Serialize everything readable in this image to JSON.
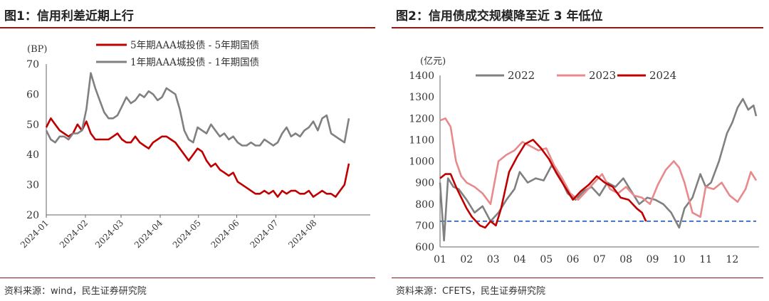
{
  "left": {
    "title": "图1：信用利差近期上行",
    "source": "资料来源：wind，民生证券研究院"
  },
  "right": {
    "title": "图2：信用债成交规模降至近 3 年低位",
    "source": "资料来源：CFETS，民生证券研究院"
  },
  "chart_data": [
    {
      "type": "line",
      "title": "图1：信用利差近期上行",
      "ylabel": "(BP)",
      "xlabel": "",
      "ylim": [
        20,
        70
      ],
      "yticks": [
        20,
        30,
        40,
        50,
        60,
        70
      ],
      "xlim": [
        0,
        34
      ],
      "xtick_positions": [
        0,
        4.4,
        8.4,
        12.8,
        17.1,
        21.4,
        25.8,
        30.1
      ],
      "xtick_labels": [
        "2024-01",
        "2024-02",
        "2024-03",
        "2024-04",
        "2024-05",
        "2024-06",
        "2024-07",
        "2024-08"
      ],
      "grid": false,
      "legend_position": "top",
      "series": [
        {
          "name": "5年期AAA城投债 - 5年期国债",
          "color": "#c00000",
          "x": [
            0,
            0.5,
            1,
            1.5,
            2,
            2.5,
            3,
            3.5,
            4,
            4.5,
            5,
            5.5,
            6,
            6.5,
            7,
            7.5,
            8,
            8.5,
            9,
            9.5,
            10,
            10.5,
            11,
            11.5,
            12,
            12.5,
            13,
            13.5,
            14,
            14.5,
            15,
            15.5,
            16,
            16.5,
            17,
            17.5,
            18,
            18.5,
            19,
            19.5,
            20,
            20.5,
            21,
            21.5,
            22,
            22.5,
            23,
            23.5,
            24,
            24.5,
            25,
            25.5,
            26,
            26.5,
            27,
            27.5,
            28,
            28.5,
            29,
            29.5,
            30,
            30.5,
            31,
            31.5,
            32,
            32.5,
            33,
            33.5,
            34
          ],
          "y": [
            49,
            52,
            50,
            48,
            47,
            46,
            47,
            50,
            48,
            51,
            47,
            45,
            45,
            45,
            45,
            46,
            47,
            45,
            44,
            44,
            46,
            44,
            43,
            42,
            44,
            45,
            46,
            46,
            45,
            44,
            42,
            40,
            38,
            40,
            42,
            41,
            38,
            36,
            37,
            35,
            34,
            33,
            34,
            31,
            30,
            29,
            28,
            27,
            27,
            28,
            27,
            28,
            26,
            28,
            27,
            28,
            28,
            27,
            27,
            28,
            26,
            27,
            28,
            27,
            27,
            26,
            28,
            30,
            37
          ]
        },
        {
          "name": "1年期AAA城投债 - 1年期国债",
          "color": "#808080",
          "x": [
            0,
            0.5,
            1,
            1.5,
            2,
            2.5,
            3,
            3.5,
            4,
            4.5,
            5,
            5.5,
            6,
            6.5,
            7,
            7.5,
            8,
            8.5,
            9,
            9.5,
            10,
            10.5,
            11,
            11.5,
            12,
            12.5,
            13,
            13.5,
            14,
            14.5,
            15,
            15.5,
            16,
            16.5,
            17,
            17.5,
            18,
            18.5,
            19,
            19.5,
            20,
            20.5,
            21,
            21.5,
            22,
            22.5,
            23,
            23.5,
            24,
            24.5,
            25,
            25.5,
            26,
            26.5,
            27,
            27.5,
            28,
            28.5,
            29,
            29.5,
            30,
            30.5,
            31,
            31.5,
            32,
            32.5,
            33,
            33.5,
            34
          ],
          "y": [
            48,
            45,
            44,
            46,
            46,
            45,
            47,
            47,
            48,
            55,
            67,
            62,
            58,
            54,
            52,
            52,
            53,
            56,
            59,
            57,
            58,
            60,
            59,
            61,
            60,
            58,
            59,
            62,
            61,
            60,
            55,
            48,
            45,
            44,
            49,
            48,
            47,
            50,
            48,
            46,
            47,
            45,
            46,
            44,
            43,
            43,
            44,
            43,
            43,
            45,
            44,
            43,
            44,
            47,
            49,
            46,
            47,
            46,
            48,
            49,
            51,
            48,
            52,
            53,
            47,
            46,
            45,
            44,
            52
          ]
        }
      ]
    },
    {
      "type": "line",
      "title": "图2：信用债成交规模降至近 3 年低位",
      "ylabel": "(亿元)",
      "xlabel": "",
      "ylim": [
        600,
        1400
      ],
      "yticks": [
        600,
        700,
        800,
        900,
        1000,
        1100,
        1200,
        1300,
        1400
      ],
      "xlim": [
        1,
        12.9
      ],
      "xtick_labels": [
        "01",
        "02",
        "03",
        "04",
        "05",
        "06",
        "07",
        "08",
        "09",
        "10",
        "11",
        "12"
      ],
      "grid": false,
      "legend_position": "top",
      "reference_line": {
        "y": 720,
        "color": "#4472c4",
        "style": "dashed"
      },
      "series": [
        {
          "name": "2022",
          "color": "#808080",
          "x": [
            1.0,
            1.15,
            1.3,
            1.5,
            1.7,
            2.0,
            2.3,
            2.6,
            2.9,
            3.2,
            3.5,
            3.8,
            4.0,
            4.3,
            4.6,
            4.9,
            5.2,
            5.5,
            5.8,
            6.1,
            6.4,
            6.7,
            7.0,
            7.3,
            7.6,
            7.9,
            8.2,
            8.5,
            8.8,
            9.1,
            9.4,
            9.7,
            10.0,
            10.2,
            10.5,
            10.8,
            11.0,
            11.2,
            11.5,
            11.8,
            12.0,
            12.2,
            12.4,
            12.6,
            12.8,
            12.9
          ],
          "y": [
            900,
            630,
            920,
            880,
            870,
            820,
            760,
            790,
            720,
            760,
            820,
            870,
            950,
            900,
            920,
            910,
            980,
            930,
            850,
            820,
            860,
            880,
            840,
            900,
            880,
            920,
            860,
            800,
            830,
            820,
            800,
            760,
            690,
            780,
            830,
            940,
            880,
            900,
            1000,
            1130,
            1180,
            1250,
            1290,
            1240,
            1260,
            1210
          ]
        },
        {
          "name": "2023",
          "color": "#e8898c",
          "x": [
            1.0,
            1.2,
            1.4,
            1.6,
            1.8,
            2.0,
            2.3,
            2.6,
            2.9,
            3.2,
            3.5,
            3.8,
            4.1,
            4.4,
            4.7,
            5.0,
            5.3,
            5.6,
            5.9,
            6.2,
            6.5,
            6.8,
            7.1,
            7.4,
            7.7,
            8.0,
            8.3,
            8.6,
            8.9,
            9.2,
            9.5,
            9.8,
            10.0,
            10.2,
            10.5,
            10.8,
            11.0,
            11.3,
            11.6,
            11.9,
            12.2,
            12.5,
            12.7,
            12.9
          ],
          "y": [
            1190,
            1200,
            1160,
            1000,
            930,
            900,
            880,
            850,
            800,
            1000,
            1030,
            1050,
            1090,
            1070,
            1050,
            1060,
            980,
            920,
            850,
            820,
            860,
            900,
            940,
            870,
            850,
            880,
            840,
            830,
            800,
            890,
            960,
            1000,
            970,
            900,
            760,
            740,
            880,
            870,
            900,
            840,
            810,
            870,
            950,
            910
          ]
        },
        {
          "name": "2024",
          "color": "#c00000",
          "x": [
            1.0,
            1.2,
            1.4,
            1.6,
            1.8,
            2.0,
            2.2,
            2.5,
            2.7,
            2.9,
            3.1,
            3.3,
            3.6,
            3.9,
            4.2,
            4.5,
            4.8,
            5.1,
            5.4,
            5.7,
            6.0,
            6.3,
            6.6,
            6.9,
            7.2,
            7.5,
            7.8,
            8.1,
            8.4,
            8.6,
            8.75
          ],
          "y": [
            920,
            940,
            940,
            880,
            830,
            780,
            740,
            700,
            690,
            720,
            700,
            780,
            950,
            1020,
            1080,
            1100,
            1060,
            1010,
            940,
            880,
            820,
            860,
            890,
            930,
            900,
            880,
            830,
            820,
            780,
            760,
            720
          ]
        }
      ]
    }
  ]
}
